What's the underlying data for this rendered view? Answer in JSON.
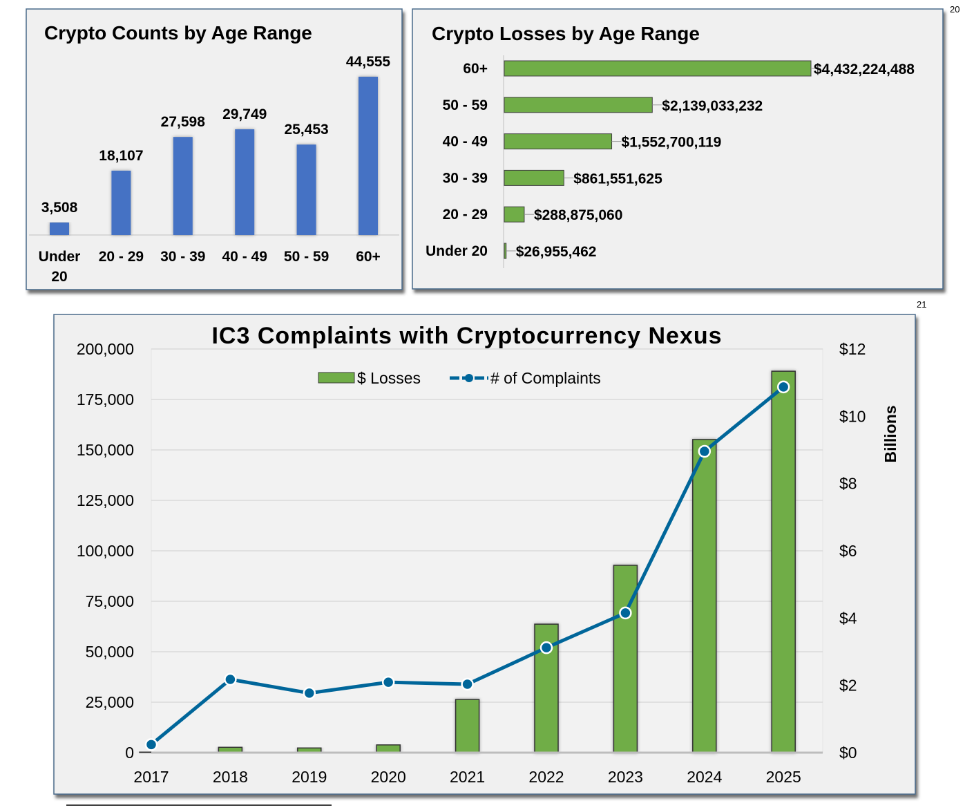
{
  "footnotes": {
    "top": "20",
    "bottom": "21"
  },
  "chart_data": [
    {
      "type": "bar",
      "title": "Crypto Counts by Age Range",
      "categories": [
        "Under 20",
        "20 - 29",
        "30 - 39",
        "40 - 49",
        "50 - 59",
        "60+"
      ],
      "values": [
        3508,
        18107,
        27598,
        29749,
        25453,
        44555
      ],
      "data_labels": [
        "3,508",
        "18,107",
        "27,598",
        "29,749",
        "25,453",
        "44,555"
      ],
      "orientation": "vertical",
      "grid": false,
      "colors": {
        "bar": "#4472c4"
      }
    },
    {
      "type": "bar",
      "title": "Crypto Losses by Age Range",
      "orientation": "horizontal",
      "categories": [
        "60+",
        "50 - 59",
        "40 - 49",
        "30 - 39",
        "20 - 29",
        "Under 20"
      ],
      "values": [
        4432224488,
        2139033232,
        1552700119,
        861551625,
        288875060,
        26955462
      ],
      "data_labels": [
        "$4,432,224,488",
        "$2,139,033,232",
        "$1,552,700,119",
        "$861,551,625",
        "$288,875,060",
        "$26,955,462"
      ],
      "grid": false,
      "colors": {
        "bar": "#70ad47"
      }
    },
    {
      "type": "bar+line",
      "title": "IC3 Complaints with Cryptocurrency Nexus",
      "categories": [
        "2017",
        "2018",
        "2019",
        "2020",
        "2021",
        "2022",
        "2023",
        "2024",
        "2025"
      ],
      "series": [
        {
          "name": "$ Losses",
          "type": "bar",
          "axis": "right",
          "values": [
            0.02,
            0.16,
            0.14,
            0.23,
            1.58,
            3.82,
            5.57,
            9.31,
            11.34
          ]
        },
        {
          "name": "# of Complaints",
          "type": "line",
          "axis": "left",
          "values": [
            4000,
            36300,
            29500,
            34900,
            33900,
            52000,
            69200,
            149300,
            181200
          ]
        }
      ],
      "y_left": {
        "range": [
          0,
          200000
        ],
        "ticks": [
          "0",
          "25,000",
          "50,000",
          "75,000",
          "100,000",
          "125,000",
          "150,000",
          "175,000",
          "200,000"
        ]
      },
      "y_right": {
        "range": [
          0,
          12
        ],
        "label": "Billions",
        "ticks": [
          "$0",
          "$2",
          "$4",
          "$6",
          "$8",
          "$10",
          "$12"
        ]
      },
      "grid": true,
      "legend": "top",
      "colors": {
        "bar": "#70ad47",
        "line": "#00669a"
      }
    }
  ]
}
